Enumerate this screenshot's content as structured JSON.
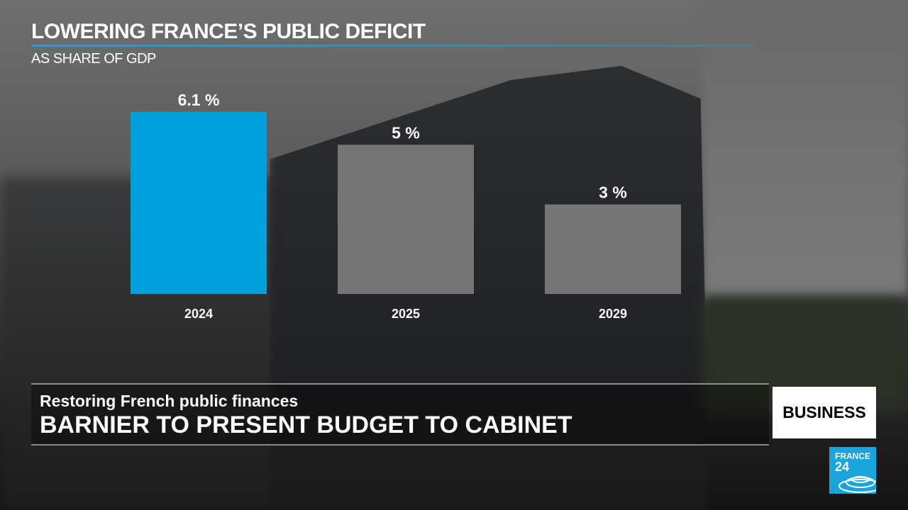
{
  "chart_data": {
    "type": "bar",
    "title": "LOWERING FRANCE’S PUBLIC DEFICIT",
    "subtitle": "AS SHARE OF GDP",
    "categories": [
      "2024",
      "2025",
      "2029"
    ],
    "values": [
      6.1,
      5,
      3
    ],
    "value_labels": [
      "6.1 %",
      "5 %",
      "3 %"
    ],
    "colors": [
      "#00a0dc",
      "#757575",
      "#757575"
    ],
    "ylim": [
      0,
      6.1
    ],
    "xlabel": "",
    "ylabel": "",
    "grid": false
  },
  "lower_third": {
    "kicker": "Restoring French public finances",
    "headline": "BARNIER TO PRESENT BUDGET TO CABINET"
  },
  "section_badge": "BUSINESS",
  "logo": {
    "line1": "FRANCE",
    "line2": "24"
  }
}
